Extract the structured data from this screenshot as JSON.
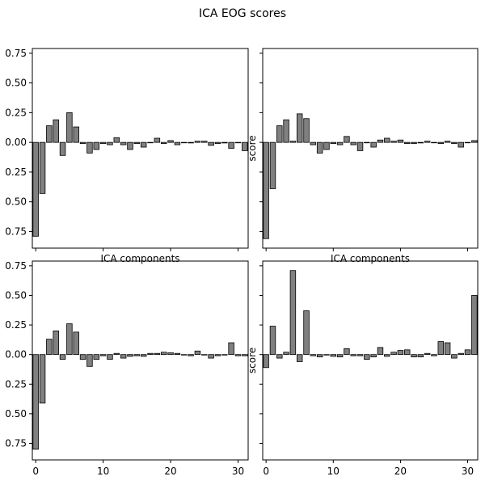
{
  "figure": {
    "title": "ICA EOG scores"
  },
  "chart_data": [
    {
      "type": "bar",
      "xlabel": "ICA components",
      "ylabel": "",
      "xlim": [
        -0.5,
        31.5
      ],
      "ylim": [
        -0.89,
        0.79
      ],
      "yticks": [
        0.75,
        0.5,
        0.25,
        0.0,
        -0.25,
        -0.5,
        -0.75
      ],
      "ytick_labels": [
        "0.75",
        "0.50",
        "0.25",
        "0.00",
        "0.25",
        "0.50",
        "0.75"
      ],
      "xticks": [
        0,
        10,
        20,
        30
      ],
      "xtick_labels": [],
      "x": [
        0,
        1,
        2,
        3,
        4,
        5,
        6,
        7,
        8,
        9,
        10,
        11,
        12,
        13,
        14,
        15,
        16,
        17,
        18,
        19,
        20,
        21,
        22,
        23,
        24,
        25,
        26,
        27,
        28,
        29,
        30,
        31
      ],
      "values": [
        -0.79,
        -0.43,
        0.14,
        0.19,
        -0.11,
        0.25,
        0.13,
        -0.01,
        -0.09,
        -0.06,
        -0.01,
        -0.02,
        0.04,
        -0.02,
        -0.06,
        -0.01,
        -0.04,
        0.0,
        0.035,
        -0.01,
        0.015,
        -0.02,
        0.0,
        -0.005,
        0.01,
        0.01,
        -0.025,
        -0.01,
        -0.005,
        -0.05,
        0.0,
        -0.07
      ],
      "bar_color": "#808080",
      "edge_color": "#000000"
    },
    {
      "type": "bar",
      "xlabel": "ICA components",
      "ylabel": "score",
      "xlim": [
        -0.5,
        31.5
      ],
      "ylim": [
        -0.89,
        0.79
      ],
      "yticks": [
        0.75,
        0.5,
        0.25,
        0.0,
        -0.25,
        -0.5,
        -0.75
      ],
      "ytick_labels": [],
      "xticks": [
        0,
        10,
        20,
        30
      ],
      "xtick_labels": [],
      "x": [
        0,
        1,
        2,
        3,
        4,
        5,
        6,
        7,
        8,
        9,
        10,
        11,
        12,
        13,
        14,
        15,
        16,
        17,
        18,
        19,
        20,
        21,
        22,
        23,
        24,
        25,
        26,
        27,
        28,
        29,
        30,
        31
      ],
      "values": [
        -0.81,
        -0.39,
        0.14,
        0.19,
        0.01,
        0.24,
        0.2,
        -0.02,
        -0.09,
        -0.06,
        -0.01,
        -0.02,
        0.05,
        -0.02,
        -0.07,
        0.0,
        -0.04,
        0.02,
        0.035,
        0.01,
        0.02,
        -0.01,
        -0.01,
        -0.005,
        0.01,
        0.0,
        -0.01,
        0.01,
        -0.01,
        -0.04,
        0.0,
        0.015
      ],
      "bar_color": "#808080",
      "edge_color": "#000000"
    },
    {
      "type": "bar",
      "xlabel": "",
      "ylabel": "",
      "xlim": [
        -0.5,
        31.5
      ],
      "ylim": [
        -0.89,
        0.79
      ],
      "yticks": [
        0.75,
        0.5,
        0.25,
        0.0,
        -0.25,
        -0.5,
        -0.75
      ],
      "ytick_labels": [
        "0.75",
        "0.50",
        "0.25",
        "0.00",
        "0.25",
        "0.50",
        "0.75"
      ],
      "xticks": [
        0,
        10,
        20,
        30
      ],
      "xtick_labels": [
        "0",
        "10",
        "20",
        "30"
      ],
      "x": [
        0,
        1,
        2,
        3,
        4,
        5,
        6,
        7,
        8,
        9,
        10,
        11,
        12,
        13,
        14,
        15,
        16,
        17,
        18,
        19,
        20,
        21,
        22,
        23,
        24,
        25,
        26,
        27,
        28,
        29,
        30,
        31
      ],
      "values": [
        -0.8,
        -0.41,
        0.13,
        0.2,
        -0.04,
        0.26,
        0.19,
        -0.04,
        -0.1,
        -0.04,
        -0.01,
        -0.04,
        0.01,
        -0.03,
        -0.015,
        -0.01,
        -0.015,
        0.01,
        0.01,
        0.02,
        0.015,
        0.01,
        0.0,
        -0.01,
        0.03,
        0.0,
        -0.03,
        -0.01,
        0.0,
        0.1,
        -0.01,
        -0.01
      ],
      "bar_color": "#808080",
      "edge_color": "#000000"
    },
    {
      "type": "bar",
      "xlabel": "",
      "ylabel": "score",
      "xlim": [
        -0.5,
        31.5
      ],
      "ylim": [
        -0.89,
        0.79
      ],
      "yticks": [
        0.75,
        0.5,
        0.25,
        0.0,
        -0.25,
        -0.5,
        -0.75
      ],
      "ytick_labels": [],
      "xticks": [
        0,
        10,
        20,
        30
      ],
      "xtick_labels": [
        "0",
        "10",
        "20",
        "30"
      ],
      "x": [
        0,
        1,
        2,
        3,
        4,
        5,
        6,
        7,
        8,
        9,
        10,
        11,
        12,
        13,
        14,
        15,
        16,
        17,
        18,
        19,
        20,
        21,
        22,
        23,
        24,
        25,
        26,
        27,
        28,
        29,
        30,
        31
      ],
      "values": [
        -0.11,
        0.24,
        -0.03,
        0.02,
        0.71,
        -0.06,
        0.37,
        -0.01,
        -0.02,
        0.0,
        -0.015,
        -0.02,
        0.05,
        -0.01,
        -0.01,
        -0.04,
        -0.02,
        0.06,
        -0.015,
        0.02,
        0.035,
        0.04,
        -0.02,
        -0.02,
        0.01,
        -0.01,
        0.11,
        0.1,
        -0.03,
        0.01,
        0.04,
        0.5
      ],
      "bar_color": "#808080",
      "edge_color": "#000000"
    }
  ]
}
